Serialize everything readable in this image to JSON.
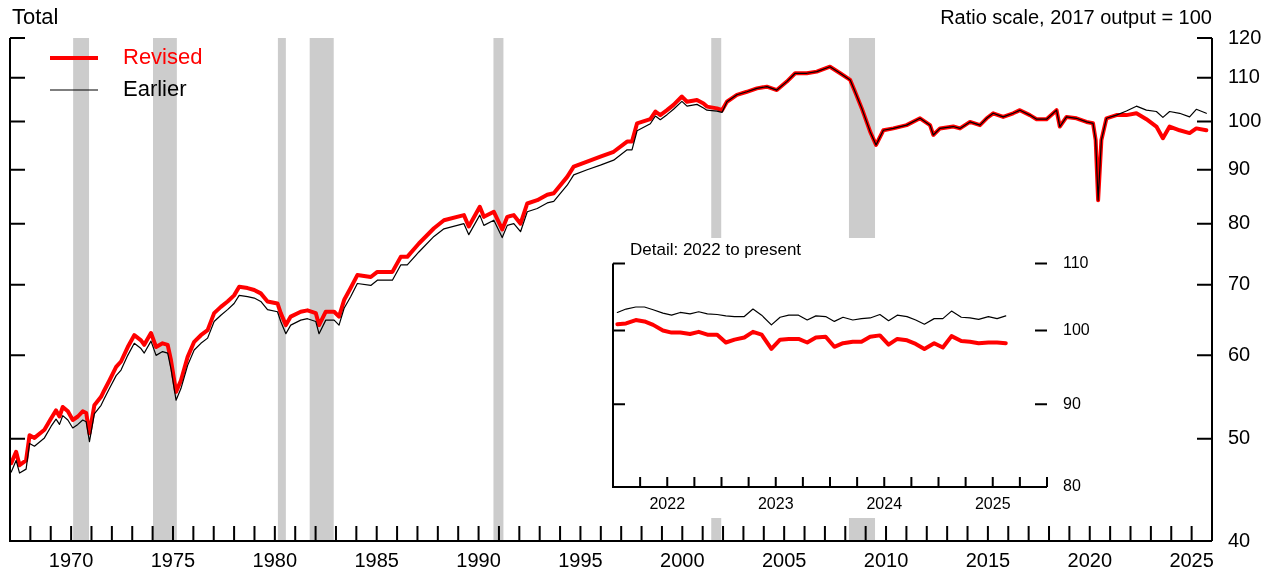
{
  "chart_data": [
    {
      "type": "line",
      "title": "Total",
      "annotations": [
        "Ratio scale, 2017 output = 100"
      ],
      "log": true,
      "legend": "top left",
      "marker": "none",
      "xlim": [
        1967,
        2026
      ],
      "xticks": [
        {
          "value": 1968,
          "label": null
        },
        {
          "value": 1969,
          "label": null
        },
        1970,
        {
          "value": 1971,
          "label": null
        },
        {
          "value": 1972,
          "label": null
        },
        {
          "value": 1973,
          "label": null
        },
        {
          "value": 1974,
          "label": null
        },
        1975,
        {
          "value": 1976,
          "label": null
        },
        {
          "value": 1977,
          "label": null
        },
        {
          "value": 1978,
          "label": null
        },
        {
          "value": 1979,
          "label": null
        },
        1980,
        {
          "value": 1981,
          "label": null
        },
        {
          "value": 1982,
          "label": null
        },
        {
          "value": 1983,
          "label": null
        },
        {
          "value": 1984,
          "label": null
        },
        1985,
        {
          "value": 1986,
          "label": null
        },
        {
          "value": 1987,
          "label": null
        },
        {
          "value": 1988,
          "label": null
        },
        {
          "value": 1989,
          "label": null
        },
        1990,
        {
          "value": 1991,
          "label": null
        },
        {
          "value": 1992,
          "label": null
        },
        {
          "value": 1993,
          "label": null
        },
        {
          "value": 1994,
          "label": null
        },
        1995,
        {
          "value": 1996,
          "label": null
        },
        {
          "value": 1997,
          "label": null
        },
        {
          "value": 1998,
          "label": null
        },
        {
          "value": 1999,
          "label": null
        },
        2000,
        {
          "value": 2001,
          "label": null
        },
        {
          "value": 2002,
          "label": null
        },
        {
          "value": 2003,
          "label": null
        },
        {
          "value": 2004,
          "label": null
        },
        2005,
        {
          "value": 2006,
          "label": null
        },
        {
          "value": 2007,
          "label": null
        },
        {
          "value": 2008,
          "label": null
        },
        {
          "value": 2009,
          "label": null
        },
        2010,
        {
          "value": 2011,
          "label": null
        },
        {
          "value": 2012,
          "label": null
        },
        {
          "value": 2013,
          "label": null
        },
        {
          "value": 2014,
          "label": null
        },
        2015,
        {
          "value": 2016,
          "label": null
        },
        {
          "value": 2017,
          "label": null
        },
        {
          "value": 2018,
          "label": null
        },
        {
          "value": 2019,
          "label": null
        },
        2020,
        {
          "value": 2021,
          "label": null
        },
        {
          "value": 2022,
          "label": null
        },
        {
          "value": 2023,
          "label": null
        },
        {
          "value": 2024,
          "label": null
        },
        2025
      ],
      "ylim": [
        40,
        120
      ],
      "yticks": [
        40,
        50,
        60,
        70,
        80,
        90,
        100,
        110,
        120
      ],
      "bands": [
        {
          "axis": "x",
          "from": 1970.1,
          "to": 1970.88,
          "color": "#cccccc"
        },
        {
          "axis": "x",
          "from": 1974.02,
          "to": 1975.19,
          "color": "#cccccc"
        },
        {
          "axis": "x",
          "from": 1980.15,
          "to": 1980.54,
          "color": "#cccccc"
        },
        {
          "axis": "x",
          "from": 1981.71,
          "to": 1982.89,
          "color": "#cccccc"
        },
        {
          "axis": "x",
          "from": 1990.73,
          "to": 1991.22,
          "color": "#cccccc"
        },
        {
          "axis": "x",
          "from": 2001.42,
          "to": 2001.91,
          "color": "#cccccc"
        },
        {
          "axis": "x",
          "from": 2008.18,
          "to": 2009.46,
          "color": "#cccccc"
        }
      ],
      "x": [
        1967.06,
        1967.3,
        1967.47,
        1967.79,
        1967.96,
        1968.2,
        1968.69,
        1969.02,
        1969.26,
        1969.43,
        1969.59,
        1969.84,
        1970.08,
        1970.33,
        1970.57,
        1970.74,
        1970.9,
        1971.14,
        1971.47,
        1971.63,
        1971.88,
        1972.21,
        1972.45,
        1972.78,
        1973.1,
        1973.43,
        1973.59,
        1973.92,
        1974.17,
        1974.49,
        1974.74,
        1974.9,
        1975.15,
        1975.39,
        1975.72,
        1976.04,
        1976.37,
        1976.7,
        1977.02,
        1977.35,
        1977.68,
        1978.0,
        1978.25,
        1978.66,
        1978.99,
        1979.31,
        1979.64,
        1980.13,
        1980.29,
        1980.54,
        1980.78,
        1981.27,
        1981.6,
        1982.01,
        1982.17,
        1982.5,
        1982.91,
        1983.15,
        1983.4,
        1983.72,
        1984.05,
        1984.71,
        1985.03,
        1985.77,
        1986.18,
        1986.5,
        1987.07,
        1987.81,
        1988.3,
        1989.28,
        1989.52,
        1990.06,
        1990.26,
        1990.75,
        1991.16,
        1991.41,
        1991.73,
        1992.06,
        1992.39,
        1992.88,
        1993.37,
        1993.69,
        1994.35,
        1994.67,
        1995.33,
        1995.98,
        1996.63,
        1997.29,
        1997.53,
        1997.78,
        1998.43,
        1998.68,
        1998.92,
        1999.25,
        1999.57,
        1999.98,
        2000.23,
        2000.72,
        2001.04,
        2001.21,
        2001.7,
        2001.95,
        2002.19,
        2002.68,
        2003.17,
        2003.66,
        2004.15,
        2004.64,
        2005.13,
        2005.54,
        2006.11,
        2006.6,
        2007.25,
        2007.75,
        2008.24,
        2008.48,
        2008.81,
        2009.22,
        2009.51,
        2009.87,
        2010.36,
        2011.01,
        2011.67,
        2012.16,
        2012.32,
        2012.65,
        2013.3,
        2013.63,
        2014.12,
        2014.61,
        2014.94,
        2015.26,
        2015.75,
        2016.24,
        2016.57,
        2017.06,
        2017.39,
        2017.88,
        2018.37,
        2018.53,
        2018.86,
        2019.35,
        2019.84,
        2020.16,
        2020.29,
        2020.41,
        2020.57,
        2020.82,
        2021.31,
        2021.8,
        2022.29,
        2022.78,
        2023.27,
        2023.59,
        2023.92,
        2024.41,
        2024.9,
        2025.23,
        2025.72
      ],
      "series": [
        {
          "name": "Revised",
          "color": "#ff0000",
          "values": [
            47.4,
            48.6,
            47.2,
            47.7,
            50.4,
            50.1,
            51.0,
            52.3,
            53.2,
            52.5,
            53.6,
            53.1,
            52.1,
            52.5,
            53.1,
            52.9,
            50.6,
            53.8,
            54.8,
            55.6,
            56.8,
            58.5,
            59.2,
            61.1,
            62.7,
            62.0,
            61.4,
            63.0,
            61.1,
            61.6,
            61.4,
            59.4,
            55.4,
            56.8,
            59.8,
            61.8,
            62.7,
            63.4,
            65.8,
            66.7,
            67.5,
            68.4,
            69.7,
            69.5,
            69.2,
            68.7,
            67.5,
            67.2,
            65.8,
            64.1,
            65.3,
            66.0,
            66.2,
            65.8,
            64.1,
            66.0,
            66.0,
            65.3,
            67.7,
            69.5,
            71.5,
            71.2,
            72.0,
            72.0,
            74.4,
            74.4,
            76.6,
            79.2,
            80.6,
            81.5,
            79.5,
            83.0,
            81.2,
            82.1,
            79.0,
            81.2,
            81.5,
            80.0,
            83.6,
            84.2,
            85.2,
            85.5,
            88.6,
            90.6,
            91.6,
            92.6,
            93.6,
            95.7,
            95.7,
            99.6,
            100.5,
            102.2,
            101.4,
            102.5,
            103.7,
            105.6,
            104.4,
            104.8,
            104.0,
            103.3,
            102.9,
            102.5,
            104.4,
            106.0,
            106.7,
            107.5,
            107.9,
            107.1,
            109.1,
            111.1,
            111.1,
            111.5,
            112.7,
            111.1,
            109.5,
            106.7,
            102.9,
            97.8,
            95.0,
            98.1,
            98.5,
            99.2,
            100.7,
            99.2,
            97.1,
            98.5,
            98.9,
            98.5,
            99.9,
            99.2,
            100.7,
            101.8,
            101.0,
            101.8,
            102.5,
            101.4,
            100.5,
            100.5,
            102.5,
            98.9,
            101.0,
            100.7,
            99.9,
            99.6,
            96.0,
            84.2,
            96.0,
            100.7,
            101.4,
            101.4,
            101.8,
            100.5,
            98.9,
            96.4,
            98.9,
            98.1,
            97.5,
            98.5,
            98.1
          ]
        },
        {
          "name": "Earlier",
          "color": "#000000",
          "values": [
            46.5,
            47.7,
            46.4,
            46.8,
            49.5,
            49.2,
            50.1,
            51.4,
            52.2,
            51.6,
            52.6,
            52.1,
            51.2,
            51.6,
            52.1,
            51.9,
            49.7,
            52.8,
            53.8,
            54.6,
            55.8,
            57.4,
            58.1,
            60.0,
            61.6,
            60.9,
            60.3,
            61.9,
            60.0,
            60.5,
            60.3,
            58.3,
            54.4,
            55.8,
            58.7,
            60.7,
            61.6,
            62.3,
            64.6,
            65.5,
            66.3,
            67.2,
            68.4,
            68.2,
            68.0,
            67.5,
            66.3,
            66.0,
            64.6,
            62.9,
            64.1,
            64.8,
            65.0,
            64.6,
            62.9,
            64.8,
            64.8,
            64.1,
            66.5,
            68.2,
            70.2,
            69.9,
            70.7,
            70.7,
            73.1,
            73.1,
            75.2,
            77.8,
            79.1,
            80.0,
            78.1,
            81.5,
            79.7,
            80.6,
            77.6,
            79.7,
            80.0,
            78.6,
            82.1,
            82.7,
            83.7,
            84.0,
            87.0,
            89.0,
            90.0,
            90.9,
            91.9,
            94.0,
            94.0,
            98.0,
            99.5,
            101.2,
            100.4,
            101.5,
            102.7,
            104.5,
            103.4,
            103.8,
            103.0,
            102.5,
            102.3,
            102.0,
            104.4,
            106.0,
            106.7,
            107.5,
            107.9,
            107.1,
            109.1,
            111.1,
            111.1,
            111.5,
            112.7,
            111.1,
            109.5,
            106.7,
            102.9,
            97.8,
            95.0,
            98.1,
            98.5,
            99.2,
            100.7,
            99.2,
            97.1,
            98.5,
            98.9,
            98.5,
            99.9,
            99.2,
            100.7,
            101.8,
            101.0,
            101.8,
            102.5,
            101.4,
            100.5,
            100.5,
            102.5,
            98.9,
            101.0,
            100.7,
            99.9,
            99.6,
            96.0,
            84.2,
            96.0,
            100.7,
            101.4,
            102.3,
            103.4,
            102.5,
            102.2,
            100.9,
            102.2,
            101.8,
            101.0,
            102.7,
            101.8
          ]
        }
      ]
    },
    {
      "type": "line",
      "title": "Detail: 2022 to present",
      "log": true,
      "legend": false,
      "marker": "none",
      "xlim": [
        2022,
        2026
      ],
      "xticks": [
        {
          "value": 2022.25,
          "label": null
        },
        {
          "value": 2022.5,
          "label": "2022"
        },
        {
          "value": 2022.75,
          "label": null
        },
        {
          "value": 2023,
          "label": null
        },
        {
          "value": 2023.25,
          "label": null
        },
        {
          "value": 2023.5,
          "label": "2023"
        },
        {
          "value": 2023.75,
          "label": null
        },
        {
          "value": 2024,
          "label": null
        },
        {
          "value": 2024.25,
          "label": null
        },
        {
          "value": 2024.5,
          "label": "2024"
        },
        {
          "value": 2024.75,
          "label": null
        },
        {
          "value": 2025,
          "label": null
        },
        {
          "value": 2025.25,
          "label": null
        },
        {
          "value": 2025.5,
          "label": "2025"
        },
        {
          "value": 2025.75,
          "label": null
        },
        {
          "value": 2026,
          "label": null
        }
      ],
      "ylim": [
        80,
        110
      ],
      "yticks": [
        80,
        90,
        100,
        110
      ],
      "x": [
        2022.04,
        2022.12,
        2022.21,
        2022.29,
        2022.37,
        2022.46,
        2022.54,
        2022.62,
        2022.71,
        2022.79,
        2022.87,
        2022.96,
        2023.04,
        2023.12,
        2023.21,
        2023.29,
        2023.37,
        2023.46,
        2023.54,
        2023.62,
        2023.71,
        2023.79,
        2023.87,
        2023.96,
        2024.04,
        2024.12,
        2024.21,
        2024.29,
        2024.37,
        2024.46,
        2024.54,
        2024.62,
        2024.71,
        2024.79,
        2024.87,
        2024.96,
        2025.04,
        2025.12,
        2025.21,
        2025.29,
        2025.37,
        2025.46,
        2025.54,
        2025.62
      ],
      "series": [
        {
          "color": "#ff0000",
          "values": [
            100.9,
            101.0,
            101.5,
            101.3,
            100.8,
            100.0,
            99.7,
            99.7,
            99.5,
            99.8,
            99.4,
            99.4,
            98.3,
            98.7,
            99.0,
            99.8,
            99.4,
            97.4,
            98.7,
            98.8,
            98.8,
            98.3,
            99.0,
            99.1,
            97.7,
            98.2,
            98.4,
            98.4,
            99.1,
            99.3,
            98.0,
            98.8,
            98.6,
            98.1,
            97.4,
            98.2,
            97.6,
            99.2,
            98.5,
            98.4,
            98.2,
            98.3,
            98.3,
            98.2
          ]
        },
        {
          "color": "#000000",
          "values": [
            102.6,
            103.1,
            103.4,
            103.4,
            103.0,
            102.5,
            102.2,
            102.6,
            102.4,
            102.7,
            102.4,
            102.3,
            102.1,
            102.0,
            102.0,
            103.1,
            102.2,
            100.8,
            101.9,
            102.2,
            102.2,
            101.5,
            102.1,
            102.0,
            101.3,
            101.9,
            101.5,
            101.7,
            101.8,
            102.3,
            101.4,
            102.2,
            102.0,
            101.5,
            100.9,
            101.7,
            101.7,
            102.8,
            101.9,
            101.8,
            101.6,
            102.0,
            101.7,
            102.1
          ]
        }
      ]
    }
  ]
}
